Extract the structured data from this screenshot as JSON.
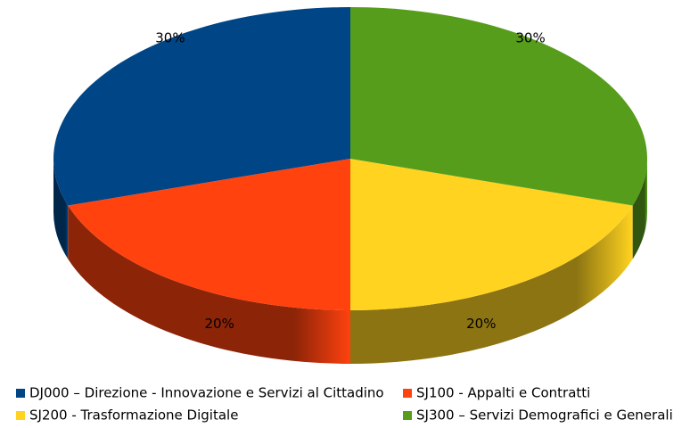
{
  "chart_data": {
    "type": "pie3d",
    "categories": [
      "DJ000 – Direzione - Innovazione e Servizi al Cittadino",
      "SJ100 - Appalti e Contratti",
      "SJ200 - Trasformazione Digitale",
      "SJ300 – Servizi Demografici e Generali"
    ],
    "values": [
      30,
      20,
      20,
      30
    ],
    "value_labels": [
      "30%",
      "20%",
      "20%",
      "30%"
    ],
    "colors": [
      "#004586",
      "#ff420e",
      "#ffd320",
      "#579d1c"
    ],
    "legend": "bottom"
  }
}
